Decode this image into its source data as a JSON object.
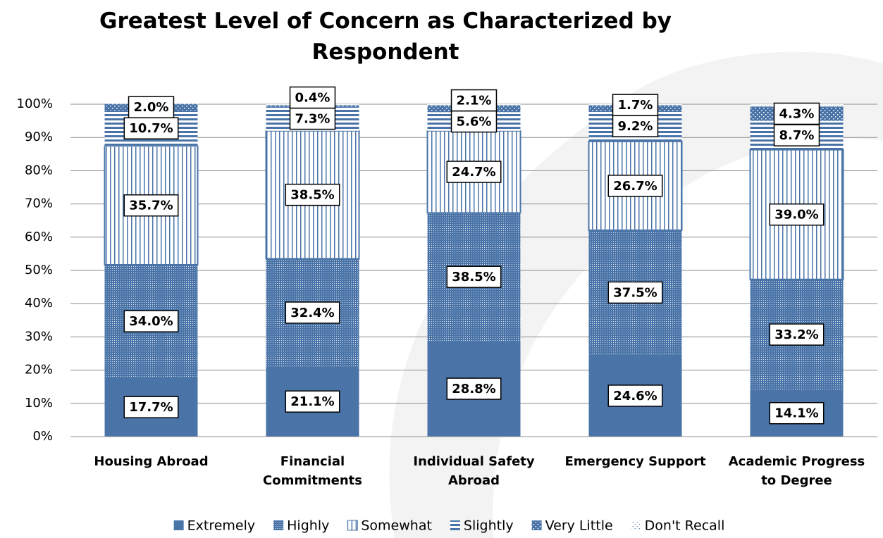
{
  "chart_data": {
    "type": "stacked_bar",
    "title": "Greatest Level of Concern as Characterized by Respondent",
    "categories": [
      "Housing Abroad",
      "Financial Commitments",
      "Individual Safety Abroad",
      "Emergency Support",
      "Academic Progress to Degree"
    ],
    "series": [
      {
        "name": "Extremely",
        "color": "#4a74a8",
        "pattern": "solid",
        "values": [
          17.7,
          21.1,
          28.8,
          24.6,
          14.1
        ],
        "value_labels": [
          "17.7%",
          "21.1%",
          "28.8%",
          "24.6%",
          "14.1%"
        ]
      },
      {
        "name": "Highly",
        "color": "#4a74a8",
        "pattern": "dots",
        "values": [
          34.0,
          32.4,
          38.5,
          37.5,
          33.2
        ],
        "value_labels": [
          "34.0%",
          "32.4%",
          "38.5%",
          "37.5%",
          "33.2%"
        ]
      },
      {
        "name": "Somewhat",
        "color": "#4a74a8",
        "pattern": "vertical",
        "values": [
          35.7,
          38.5,
          24.7,
          26.7,
          39.0
        ],
        "value_labels": [
          "35.7%",
          "38.5%",
          "24.7%",
          "26.7%",
          "39.0%"
        ]
      },
      {
        "name": "Slightly",
        "color": "#4a74a8",
        "pattern": "horizontal",
        "values": [
          10.7,
          7.3,
          5.6,
          9.2,
          8.7
        ],
        "value_labels": [
          "10.7%",
          "7.3%",
          "5.6%",
          "9.2%",
          "8.7%"
        ]
      },
      {
        "name": "Very Little",
        "color": "#4a74a8",
        "pattern": "checker",
        "values": [
          2.0,
          0.4,
          2.1,
          1.7,
          4.3
        ],
        "value_labels": [
          "2.0%",
          "0.4%",
          "2.1%",
          "1.7%",
          "4.3%"
        ]
      },
      {
        "name": "Don't Recall",
        "color": "#4a74a8",
        "pattern": "sparse",
        "values": [
          null,
          0.3,
          0.3,
          0.3,
          0.7
        ],
        "value_labels": [
          null,
          null,
          null,
          null,
          null
        ]
      }
    ],
    "ylim": [
      0,
      100
    ],
    "yticks": [
      {
        "value": 0,
        "label": "0%"
      },
      {
        "value": 10,
        "label": "10%"
      },
      {
        "value": 20,
        "label": "20%"
      },
      {
        "value": 30,
        "label": "30%"
      },
      {
        "value": 40,
        "label": "40%"
      },
      {
        "value": 50,
        "label": "50%"
      },
      {
        "value": 60,
        "label": "60%"
      },
      {
        "value": 70,
        "label": "70%"
      },
      {
        "value": 80,
        "label": "80%"
      },
      {
        "value": 90,
        "label": "90%"
      },
      {
        "value": 100,
        "label": "100%"
      }
    ],
    "grid": true,
    "legend": "bottom"
  }
}
